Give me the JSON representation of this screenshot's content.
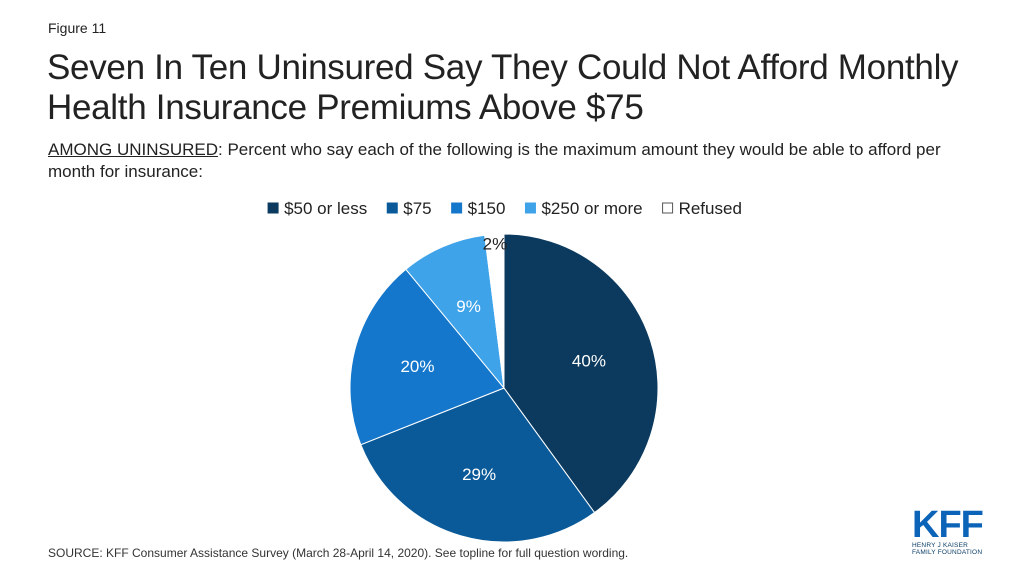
{
  "figure_label": "Figure 11",
  "title": "Seven In Ten Uninsured Say They Could Not Afford Monthly Health Insurance Premiums Above $75",
  "subtitle_lead": "AMONG UNINSURED",
  "subtitle_rest": ": Percent who say each of the following is the maximum amount they would be able to afford per month for insurance:",
  "source": "SOURCE: KFF Consumer Assistance Survey (March 28-April 14, 2020). See topline for full question wording.",
  "logo": {
    "mark": "KFF",
    "line1": "HENRY J KAISER",
    "line2": "FAMILY FOUNDATION"
  },
  "chart_data": {
    "type": "pie",
    "title": "",
    "legend_position": "top",
    "categories": [
      "$50 or less",
      "$75",
      "$150",
      "$250 or more",
      "Refused"
    ],
    "values": [
      40,
      29,
      20,
      9,
      2
    ],
    "labels": [
      "40%",
      "29%",
      "20%",
      "9%",
      "2%"
    ],
    "colors": [
      "#0b3a5e",
      "#0a5a99",
      "#1577cc",
      "#3fa3ea",
      "#ffffff"
    ]
  }
}
